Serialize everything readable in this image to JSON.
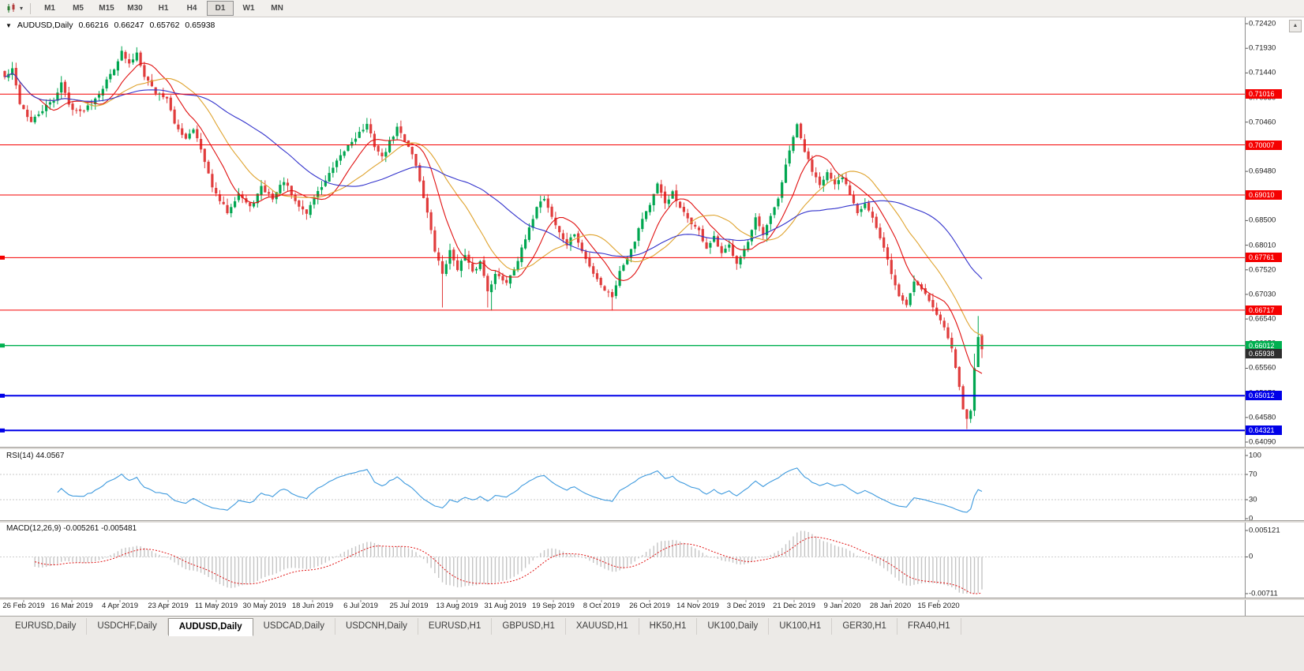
{
  "icons": {
    "collapse": "▼",
    "scroll_up": "▲",
    "dropdown": "▾"
  },
  "toolbar": {
    "timeframes": [
      "M1",
      "M5",
      "M15",
      "M30",
      "H1",
      "H4",
      "D1",
      "W1",
      "MN"
    ],
    "active_timeframe": "D1"
  },
  "chart": {
    "title": "AUDUSD,Daily",
    "ohlc": {
      "open": "0.66216",
      "high": "0.66247",
      "low": "0.65762",
      "close": "0.65938"
    },
    "price_axis": [
      "0.72420",
      "0.71930",
      "0.71440",
      "0.70950",
      "0.70460",
      "0.69970",
      "0.69480",
      "0.68990",
      "0.68500",
      "0.68010",
      "0.67520",
      "0.67030",
      "0.66540",
      "0.66050",
      "0.65560",
      "0.65070",
      "0.64580",
      "0.64090"
    ],
    "dates": [
      "26 Feb 2019",
      "16 Mar 2019",
      "4 Apr 2019",
      "23 Apr 2019",
      "11 May 2019",
      "30 May 2019",
      "18 Jun 2019",
      "6 Jul 2019",
      "25 Jul 2019",
      "13 Aug 2019",
      "31 Aug 2019",
      "19 Sep 2019",
      "8 Oct 2019",
      "26 Oct 2019",
      "14 Nov 2019",
      "3 Dec 2019",
      "21 Dec 2019",
      "9 Jan 2020",
      "28 Jan 2020",
      "15 Feb 2020"
    ]
  },
  "rsi": {
    "label": "RSI(14) 44.0567"
  },
  "macd": {
    "label": "MACD(12,26,9) -0.005261 -0.005481"
  },
  "tabs": {
    "items": [
      "EURUSD,Daily",
      "USDCHF,Daily",
      "AUDUSD,Daily",
      "USDCAD,Daily",
      "USDCNH,Daily",
      "EURUSD,H1",
      "GBPUSD,H1",
      "XAUUSD,H1",
      "HK50,H1",
      "UK100,Daily",
      "UK100,H1",
      "GER30,H1",
      "FRA40,H1"
    ],
    "active": "AUDUSD,Daily"
  },
  "chart_data": {
    "type": "candlestick",
    "symbol": "AUDUSD",
    "timeframe": "Daily",
    "title": "AUDUSD,Daily",
    "x_range": [
      "26 Feb 2019",
      "Feb 2020"
    ],
    "y_range": [
      0.6409,
      0.7242
    ],
    "bar_count": 260,
    "seed": 42,
    "noise": 0.0009,
    "wick": 0.0013,
    "bull_color": "#00a650",
    "bear_color": "#e03c3c",
    "ohlc_current": {
      "open": 0.66216,
      "high": 0.66247,
      "low": 0.65762,
      "close": 0.65938
    },
    "price_anchors": [
      [
        0,
        0.7135
      ],
      [
        2,
        0.715
      ],
      [
        4,
        0.7085
      ],
      [
        7,
        0.7045
      ],
      [
        10,
        0.707
      ],
      [
        13,
        0.709
      ],
      [
        15,
        0.7125
      ],
      [
        17,
        0.708
      ],
      [
        20,
        0.7065
      ],
      [
        23,
        0.7085
      ],
      [
        26,
        0.7115
      ],
      [
        29,
        0.7155
      ],
      [
        31,
        0.7185
      ],
      [
        33,
        0.716
      ],
      [
        35,
        0.7185
      ],
      [
        37,
        0.714
      ],
      [
        40,
        0.7105
      ],
      [
        43,
        0.7095
      ],
      [
        45,
        0.704
      ],
      [
        48,
        0.7015
      ],
      [
        50,
        0.7035
      ],
      [
        52,
        0.699
      ],
      [
        54,
        0.694
      ],
      [
        56,
        0.69
      ],
      [
        59,
        0.6868
      ],
      [
        62,
        0.6905
      ],
      [
        65,
        0.6875
      ],
      [
        68,
        0.6915
      ],
      [
        71,
        0.6895
      ],
      [
        74,
        0.693
      ],
      [
        77,
        0.6885
      ],
      [
        80,
        0.6865
      ],
      [
        82,
        0.6895
      ],
      [
        85,
        0.693
      ],
      [
        88,
        0.6965
      ],
      [
        91,
        0.7
      ],
      [
        94,
        0.7025
      ],
      [
        96,
        0.704
      ],
      [
        98,
        0.7
      ],
      [
        100,
        0.6975
      ],
      [
        102,
        0.7005
      ],
      [
        104,
        0.7035
      ],
      [
        106,
        0.701
      ],
      [
        108,
        0.6985
      ],
      [
        110,
        0.693
      ],
      [
        112,
        0.6865
      ],
      [
        114,
        0.679
      ],
      [
        116,
        0.6745
      ],
      [
        118,
        0.6788
      ],
      [
        120,
        0.6756
      ],
      [
        122,
        0.678
      ],
      [
        124,
        0.6745
      ],
      [
        126,
        0.6768
      ],
      [
        128,
        0.6712
      ],
      [
        130,
        0.6742
      ],
      [
        133,
        0.6728
      ],
      [
        136,
        0.6772
      ],
      [
        139,
        0.6832
      ],
      [
        141,
        0.688
      ],
      [
        143,
        0.6895
      ],
      [
        145,
        0.6858
      ],
      [
        147,
        0.6825
      ],
      [
        149,
        0.6802
      ],
      [
        151,
        0.6824
      ],
      [
        153,
        0.6788
      ],
      [
        155,
        0.6758
      ],
      [
        157,
        0.6735
      ],
      [
        159,
        0.6712
      ],
      [
        161,
        0.67
      ],
      [
        163,
        0.6748
      ],
      [
        165,
        0.6778
      ],
      [
        167,
        0.6812
      ],
      [
        169,
        0.6856
      ],
      [
        171,
        0.6882
      ],
      [
        173,
        0.692
      ],
      [
        175,
        0.6885
      ],
      [
        177,
        0.6905
      ],
      [
        179,
        0.6872
      ],
      [
        181,
        0.6855
      ],
      [
        184,
        0.6828
      ],
      [
        186,
        0.6795
      ],
      [
        188,
        0.6815
      ],
      [
        190,
        0.6782
      ],
      [
        192,
        0.68
      ],
      [
        194,
        0.6768
      ],
      [
        197,
        0.6806
      ],
      [
        199,
        0.6852
      ],
      [
        201,
        0.682
      ],
      [
        203,
        0.6856
      ],
      [
        205,
        0.6895
      ],
      [
        207,
        0.6958
      ],
      [
        209,
        0.7018
      ],
      [
        210,
        0.7038
      ],
      [
        212,
        0.6988
      ],
      [
        214,
        0.695
      ],
      [
        216,
        0.6925
      ],
      [
        218,
        0.6945
      ],
      [
        220,
        0.6918
      ],
      [
        222,
        0.6936
      ],
      [
        224,
        0.6905
      ],
      [
        226,
        0.6868
      ],
      [
        228,
        0.6886
      ],
      [
        230,
        0.6855
      ],
      [
        232,
        0.6812
      ],
      [
        234,
        0.6775
      ],
      [
        235,
        0.6742
      ],
      [
        237,
        0.67
      ],
      [
        239,
        0.6682
      ],
      [
        241,
        0.673
      ],
      [
        243,
        0.6716
      ],
      [
        245,
        0.6692
      ],
      [
        247,
        0.6662
      ],
      [
        249,
        0.6638
      ],
      [
        251,
        0.66
      ],
      [
        252,
        0.656
      ],
      [
        253,
        0.6515
      ],
      [
        254,
        0.6478
      ],
      [
        255,
        0.6452
      ],
      [
        256,
        0.6472
      ],
      [
        257,
        0.6556
      ],
      [
        258,
        0.6622
      ],
      [
        259,
        0.65938
      ]
    ],
    "wick_events": [
      {
        "i": 31,
        "high": 0.7197
      },
      {
        "i": 35,
        "high": 0.7195
      },
      {
        "i": 96,
        "high": 0.7048
      },
      {
        "i": 116,
        "low": 0.6677
      },
      {
        "i": 128,
        "low": 0.6677
      },
      {
        "i": 129,
        "low": 0.6671
      },
      {
        "i": 161,
        "low": 0.6671
      },
      {
        "i": 210,
        "high": 0.7042
      },
      {
        "i": 255,
        "low": 0.6435
      },
      {
        "i": 257,
        "high": 0.6585
      },
      {
        "i": 258,
        "high": 0.666
      }
    ],
    "levels": [
      {
        "price": 0.71016,
        "label": "0.71016",
        "color": "#f50000",
        "width": 1,
        "marker": false
      },
      {
        "price": 0.70007,
        "label": "0.70007",
        "color": "#f50000",
        "width": 1,
        "marker": false
      },
      {
        "price": 0.6901,
        "label": "0.69010",
        "color": "#f50000",
        "width": 1,
        "marker": false
      },
      {
        "price": 0.67761,
        "label": "0.67761",
        "color": "#f50000",
        "width": 1,
        "marker": true
      },
      {
        "price": 0.66717,
        "label": "0.66717",
        "color": "#f50000",
        "width": 1,
        "marker": false
      },
      {
        "price": 0.66012,
        "label": "0.66012",
        "color": "#00b050",
        "width": 1.4,
        "marker": true
      },
      {
        "price": 0.65012,
        "label": "0.65012",
        "color": "#0000e8",
        "width": 2,
        "marker": true
      },
      {
        "price": 0.64321,
        "label": "0.64321",
        "color": "#0000e8",
        "width": 2,
        "marker": true
      }
    ],
    "current_price_tag": {
      "price": 0.65938,
      "label": "0.65938",
      "bg": "#2d2d2d"
    },
    "moving_averages": [
      {
        "period": 10,
        "color": "#e01010"
      },
      {
        "period": 21,
        "color": "#dfa32e"
      },
      {
        "period": 42,
        "color": "#3333cc"
      }
    ],
    "indicators": [
      {
        "name": "RSI",
        "params": "14",
        "value": 44.0567,
        "color": "#3e9ade",
        "levels": [
          70,
          30
        ],
        "range": [
          0,
          100
        ],
        "axis": [
          {
            "v": 100,
            "label": "100"
          },
          {
            "v": 70,
            "label": "70"
          },
          {
            "v": 30,
            "label": "30"
          },
          {
            "v": 0,
            "label": "0"
          }
        ]
      },
      {
        "name": "MACD",
        "params": "12,26,9",
        "values": [
          -0.005261,
          -0.005481
        ],
        "range": [
          -0.00711,
          0.005121
        ],
        "hist_color": "#c4c4c4",
        "signal_color": "#e01010",
        "axis": [
          {
            "v": 0.005121,
            "label": "0.005121"
          },
          {
            "v": 0,
            "label": "0"
          },
          {
            "v": -0.00711,
            "label": "-0.00711"
          }
        ]
      }
    ]
  }
}
